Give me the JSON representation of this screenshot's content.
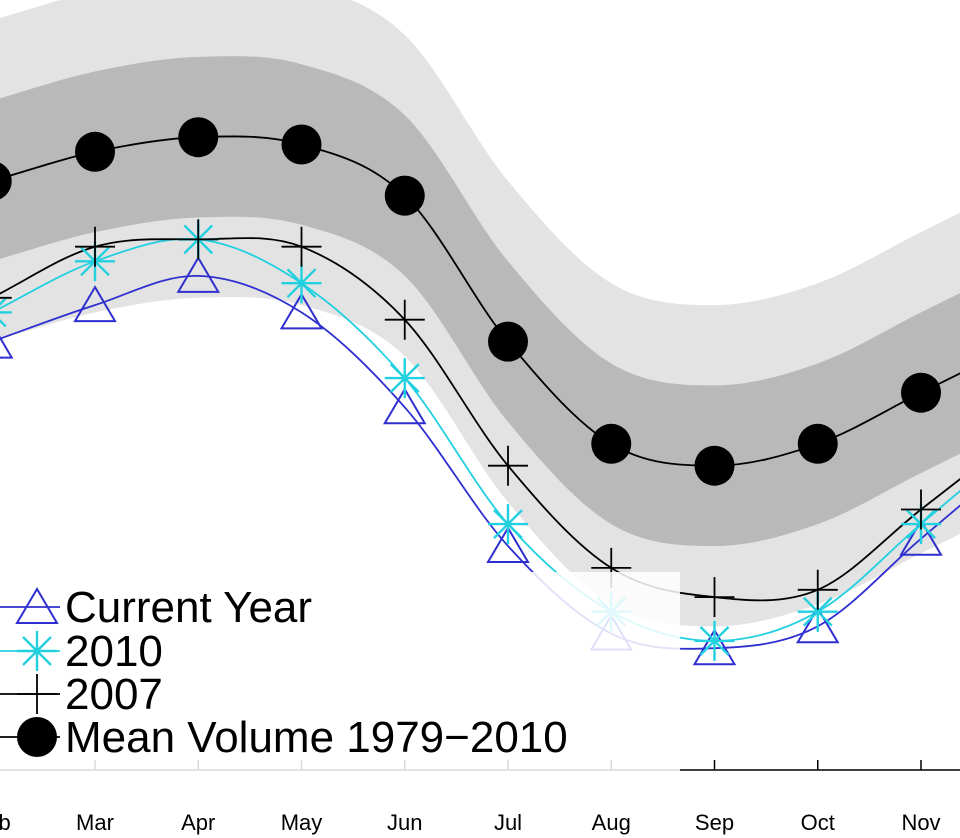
{
  "chart_data": {
    "type": "line",
    "title": "",
    "xlabel": "",
    "ylabel": "",
    "categories": [
      "Feb",
      "Mar",
      "Apr",
      "May",
      "Jun",
      "Jul",
      "Aug",
      "Sep",
      "Oct",
      "Nov"
    ],
    "x": [
      2,
      3,
      4,
      5,
      6,
      7,
      8,
      9,
      10,
      11
    ],
    "ylim": [
      0,
      100
    ],
    "legend_position": "bottom-left",
    "series": [
      {
        "name": "Current Year",
        "marker": "triangle",
        "color": "#2f2fd0",
        "values": [
          58,
          63,
          67,
          62,
          49,
          30,
          18,
          16,
          19,
          31
        ]
      },
      {
        "name": "2010",
        "marker": "asterisk",
        "color": "#22d0e0",
        "values": [
          62,
          69,
          72,
          66,
          53,
          33,
          21,
          17,
          21,
          33
        ]
      },
      {
        "name": "2007",
        "marker": "plus",
        "color": "#000000",
        "values": [
          64,
          71,
          72,
          71,
          61,
          41,
          27,
          23,
          24,
          35
        ]
      },
      {
        "name": "Mean Volume 1979−2010",
        "marker": "dot",
        "color": "#000000",
        "values": [
          80,
          84,
          86,
          85,
          78,
          58,
          44,
          41,
          44,
          51
        ]
      }
    ],
    "bands": [
      {
        "sigma": 2,
        "color": "#e3e3e3",
        "halfwidth": 22
      },
      {
        "sigma": 1,
        "color": "#b9b9b9",
        "halfwidth": 11
      }
    ]
  }
}
